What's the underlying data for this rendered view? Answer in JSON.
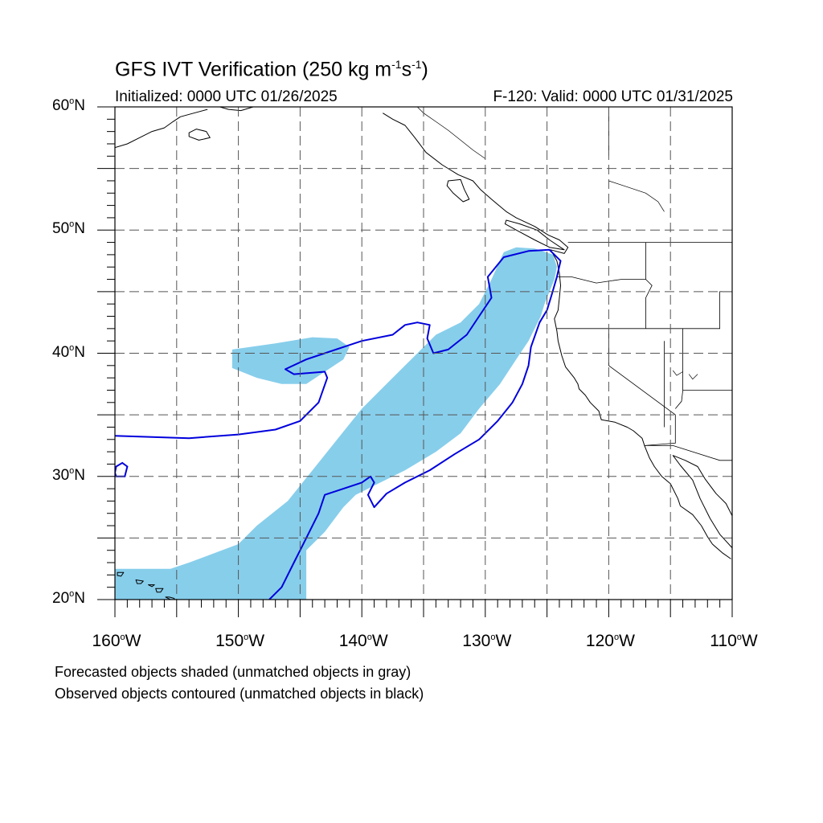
{
  "title": {
    "main": "GFS IVT Verification (250 kg m",
    "exp1": "-1",
    "mid": "s",
    "exp2": "-1",
    "end": ")"
  },
  "subtitle": {
    "initialized": "Initialized: 0000 UTC 01/26/2025",
    "valid": "F-120: Valid: 0000 UTC 01/31/2025"
  },
  "legend": {
    "forecast": "Forecasted objects shaded (unmatched objects in gray)",
    "observed": "Observed objects contoured (unmatched objects in black)"
  },
  "axes": {
    "lat_ticks": [
      {
        "value": 60,
        "label": "60",
        "suffix": "N"
      },
      {
        "value": 50,
        "label": "50",
        "suffix": "N"
      },
      {
        "value": 40,
        "label": "40",
        "suffix": "N"
      },
      {
        "value": 30,
        "label": "30",
        "suffix": "N"
      },
      {
        "value": 20,
        "label": "20",
        "suffix": "N"
      }
    ],
    "lon_ticks": [
      {
        "value": -160,
        "label": "160",
        "suffix": "W"
      },
      {
        "value": -150,
        "label": "150",
        "suffix": "W"
      },
      {
        "value": -140,
        "label": "140",
        "suffix": "W"
      },
      {
        "value": -130,
        "label": "130",
        "suffix": "W"
      },
      {
        "value": -120,
        "label": "120",
        "suffix": "W"
      },
      {
        "value": -110,
        "label": "110",
        "suffix": "W"
      }
    ],
    "lon_range": [
      -160,
      -110
    ],
    "lat_range": [
      20,
      60
    ],
    "degree_symbol": "o"
  },
  "colors": {
    "forecast_fill": "#87ceeb",
    "observed_contour": "#0000dd",
    "coast": "#000000",
    "grid": "#555555"
  },
  "map_data": {
    "forecast_object": [
      [
        -155.5,
        22.5
      ],
      [
        -154,
        23
      ],
      [
        -150,
        24.5
      ],
      [
        -148.5,
        26
      ],
      [
        -146,
        28
      ],
      [
        -144,
        30.5
      ],
      [
        -142,
        33
      ],
      [
        -140,
        35.5
      ],
      [
        -138,
        37.5
      ],
      [
        -136,
        39.5
      ],
      [
        -134,
        41.5
      ],
      [
        -132,
        42.5
      ],
      [
        -130.5,
        44
      ],
      [
        -129.5,
        46
      ],
      [
        -128.5,
        48.2
      ],
      [
        -127.5,
        48.6
      ],
      [
        -126,
        48.5
      ],
      [
        -124.5,
        48
      ],
      [
        -124.2,
        47
      ],
      [
        -124.4,
        46
      ],
      [
        -124.8,
        45
      ],
      [
        -125.2,
        44
      ],
      [
        -125.5,
        43
      ],
      [
        -126.5,
        41
      ],
      [
        -127.5,
        39.5
      ],
      [
        -128.8,
        37.5
      ],
      [
        -130.5,
        35.5
      ],
      [
        -132,
        33.5
      ],
      [
        -134,
        32
      ],
      [
        -136.5,
        30.5
      ],
      [
        -138.5,
        29.5
      ],
      [
        -140.5,
        28.5
      ],
      [
        -141.5,
        27.5
      ],
      [
        -143,
        25.5
      ],
      [
        -144.5,
        24
      ],
      [
        -144.5,
        20
      ],
      [
        -160,
        20
      ],
      [
        -160,
        22.5
      ]
    ],
    "forecast_object_secondary": [
      [
        -150.5,
        40.3
      ],
      [
        -147,
        40.8
      ],
      [
        -144,
        41.3
      ],
      [
        -142,
        41.2
      ],
      [
        -141,
        40.5
      ],
      [
        -141.5,
        39.5
      ],
      [
        -143,
        38.5
      ],
      [
        -144.5,
        37.5
      ],
      [
        -146.5,
        37.5
      ],
      [
        -148.5,
        38
      ],
      [
        -150.5,
        38.8
      ]
    ],
    "observed_contours": [
      [
        [
          -160,
          33.3
        ],
        [
          -157,
          33.2
        ],
        [
          -154,
          33.1
        ],
        [
          -150,
          33.4
        ],
        [
          -147,
          33.8
        ],
        [
          -145,
          34.5
        ],
        [
          -143.5,
          36
        ],
        [
          -142.8,
          38
        ],
        [
          -143,
          38.5
        ],
        [
          -145.5,
          38.3
        ],
        [
          -146.2,
          38.7
        ],
        [
          -144.5,
          39.5
        ],
        [
          -143,
          40
        ],
        [
          -141.5,
          40.5
        ],
        [
          -140,
          41
        ],
        [
          -137.5,
          41.5
        ],
        [
          -136.5,
          42.3
        ],
        [
          -135.5,
          42.5
        ],
        [
          -134.5,
          42.3
        ],
        [
          -134.7,
          41.2
        ],
        [
          -134.2,
          40
        ],
        [
          -133,
          40.3
        ],
        [
          -131.5,
          41.5
        ],
        [
          -130.5,
          43
        ],
        [
          -129.5,
          44.5
        ],
        [
          -129.8,
          46.2
        ],
        [
          -128.5,
          47.8
        ],
        [
          -126.5,
          48.3
        ],
        [
          -124.8,
          48.4
        ],
        [
          -123.9,
          47.5
        ],
        [
          -124.2,
          46.2
        ],
        [
          -124.6,
          44.8
        ],
        [
          -125,
          43.5
        ],
        [
          -125.6,
          42.5
        ],
        [
          -126.3,
          40.5
        ],
        [
          -126.5,
          39
        ],
        [
          -127,
          37.5
        ],
        [
          -127.8,
          36
        ],
        [
          -129,
          34.5
        ],
        [
          -130.5,
          33
        ],
        [
          -132.5,
          31.8
        ],
        [
          -134.5,
          30.5
        ],
        [
          -136.5,
          29.5
        ],
        [
          -138,
          28.6
        ],
        [
          -139,
          27.5
        ],
        [
          -139.5,
          28.5
        ],
        [
          -139,
          29.5
        ],
        [
          -139.3,
          30
        ],
        [
          -140,
          29.5
        ],
        [
          -141.5,
          29
        ],
        [
          -143,
          28.5
        ],
        [
          -143.5,
          27
        ],
        [
          -144.5,
          25
        ],
        [
          -145.5,
          23
        ],
        [
          -146.5,
          21
        ],
        [
          -147.5,
          20
        ]
      ]
    ],
    "observed_small_loop": [
      [
        -159.9,
        30
      ],
      [
        -159.2,
        30
      ],
      [
        -159,
        30.8
      ],
      [
        -159.4,
        31.1
      ],
      [
        -159.9,
        30.8
      ],
      [
        -160,
        30.3
      ]
    ],
    "coastline_main": [
      [
        -138.3,
        59.5
      ],
      [
        -137.5,
        59
      ],
      [
        -136.5,
        58.5
      ],
      [
        -135.7,
        57.5
      ],
      [
        -134.8,
        56.3
      ],
      [
        -133.5,
        55.3
      ],
      [
        -132.2,
        54.5
      ],
      [
        -131,
        54
      ],
      [
        -130.4,
        53.3
      ],
      [
        -129.5,
        52.5
      ],
      [
        -128.3,
        51.5
      ],
      [
        -127.5,
        51
      ],
      [
        -126,
        50.3
      ],
      [
        -124.9,
        49.6
      ],
      [
        -124,
        49.2
      ],
      [
        -123.3,
        48.6
      ],
      [
        -123.6,
        48.1
      ],
      [
        -124.7,
        48.4
      ],
      [
        -124.2,
        47.5
      ],
      [
        -124,
        46.5
      ],
      [
        -123.9,
        45.5
      ],
      [
        -124,
        44.5
      ],
      [
        -124.1,
        43.5
      ],
      [
        -124.4,
        42.8
      ],
      [
        -124.2,
        41.8
      ],
      [
        -124.1,
        41
      ],
      [
        -123.8,
        39.8
      ],
      [
        -123.5,
        38.9
      ],
      [
        -122.8,
        38
      ],
      [
        -122.5,
        37.5
      ],
      [
        -122.4,
        37.1
      ],
      [
        -121.9,
        36.6
      ],
      [
        -121.5,
        36
      ],
      [
        -120.8,
        35.3
      ],
      [
        -120.6,
        34.6
      ],
      [
        -119.5,
        34.4
      ],
      [
        -118.5,
        34
      ],
      [
        -118,
        33.7
      ],
      [
        -117.3,
        33.1
      ],
      [
        -117.1,
        32.5
      ],
      [
        -116.7,
        31.5
      ],
      [
        -116.3,
        30.8
      ],
      [
        -115.7,
        30
      ],
      [
        -115,
        29.4
      ],
      [
        -114.4,
        28.2
      ],
      [
        -114.2,
        27.6
      ],
      [
        -113.2,
        26.9
      ],
      [
        -112.5,
        26
      ],
      [
        -112,
        25.1
      ],
      [
        -111.6,
        24.5
      ],
      [
        -110.8,
        23.8
      ],
      [
        -110.1,
        23.3
      ]
    ],
    "coastline_gulf": [
      [
        -110,
        24.2
      ],
      [
        -111,
        25.3
      ],
      [
        -111.8,
        26.6
      ],
      [
        -112.6,
        28.2
      ],
      [
        -113.2,
        29.7
      ],
      [
        -114.2,
        30.9
      ],
      [
        -114.8,
        31.7
      ],
      [
        -113.8,
        31.3
      ],
      [
        -112.8,
        30.8
      ],
      [
        -112.2,
        29.8
      ],
      [
        -111.3,
        28.6
      ],
      [
        -110.5,
        27.8
      ],
      [
        -110,
        26.8
      ]
    ],
    "coastline_alaska_west": [
      [
        -160,
        56.7
      ],
      [
        -159,
        57
      ],
      [
        -158,
        57.5
      ],
      [
        -157,
        58
      ],
      [
        -156,
        58.3
      ],
      [
        -155.3,
        58.8
      ],
      [
        -154.7,
        59.2
      ],
      [
        -153.6,
        59.5
      ],
      [
        -152.5,
        59.8
      ]
    ],
    "coastline_alaska_south": [
      [
        -151.5,
        60
      ],
      [
        -150.8,
        59.8
      ],
      [
        -149.8,
        59.7
      ],
      [
        -148.8,
        60
      ],
      [
        -147.8,
        60
      ],
      [
        -146.8,
        60.1
      ]
    ],
    "islands": [
      [
        [
          -154,
          57.6
        ],
        [
          -153.2,
          57.3
        ],
        [
          -152.3,
          57.5
        ],
        [
          -152.6,
          58
        ],
        [
          -153.4,
          58.2
        ],
        [
          -154,
          57.9
        ]
      ],
      [
        [
          -133,
          54
        ],
        [
          -132,
          54.1
        ],
        [
          -131.7,
          53.3
        ],
        [
          -131.3,
          52.5
        ],
        [
          -131.8,
          52.3
        ],
        [
          -132.6,
          53
        ],
        [
          -133.1,
          53.6
        ]
      ],
      [
        [
          -128.3,
          50.8
        ],
        [
          -127.2,
          50.5
        ],
        [
          -125.8,
          50
        ],
        [
          -124.8,
          49.2
        ],
        [
          -123.6,
          48.4
        ],
        [
          -124.8,
          48.6
        ],
        [
          -126,
          49.2
        ],
        [
          -127.3,
          49.9
        ],
        [
          -128.4,
          50.5
        ]
      ],
      [
        [
          -155.9,
          20.2
        ],
        [
          -155.1,
          19.8
        ],
        [
          -155.2,
          20.1
        ],
        [
          -155.6,
          20.2
        ]
      ],
      [
        [
          -156.7,
          20.9
        ],
        [
          -156.1,
          20.9
        ],
        [
          -156.3,
          20.6
        ],
        [
          -156.6,
          20.6
        ]
      ],
      [
        [
          -157.3,
          21.2
        ],
        [
          -156.8,
          21.2
        ],
        [
          -157,
          21.05
        ]
      ],
      [
        [
          -158.3,
          21.6
        ],
        [
          -157.7,
          21.5
        ],
        [
          -157.9,
          21.3
        ],
        [
          -158.2,
          21.3
        ]
      ],
      [
        [
          -159.8,
          22.2
        ],
        [
          -159.3,
          22.2
        ],
        [
          -159.5,
          21.9
        ],
        [
          -159.8,
          21.95
        ]
      ]
    ],
    "political_borders": [
      [
        [
          -123.3,
          49
        ],
        [
          -117,
          49
        ],
        [
          -110,
          49
        ]
      ],
      [
        [
          -117,
          49
        ],
        [
          -117,
          46
        ],
        [
          -116.5,
          45.5
        ],
        [
          -117,
          44.5
        ],
        [
          -117,
          42
        ]
      ],
      [
        [
          -124.2,
          46.2
        ],
        [
          -123,
          46.2
        ],
        [
          -121,
          45.7
        ],
        [
          -119,
          46
        ],
        [
          -117,
          46
        ]
      ],
      [
        [
          -124.2,
          42
        ],
        [
          -120,
          42
        ],
        [
          -117,
          42
        ],
        [
          -114,
          42
        ],
        [
          -111,
          42
        ],
        [
          -111,
          45
        ],
        [
          -110,
          45
        ]
      ],
      [
        [
          -120,
          42
        ],
        [
          -120,
          39
        ],
        [
          -114.6,
          35
        ],
        [
          -114.6,
          34.5
        ],
        [
          -114.6,
          32.7
        ],
        [
          -117.1,
          32.5
        ]
      ],
      [
        [
          -114,
          42
        ],
        [
          -114,
          37
        ],
        [
          -114.1,
          36.1
        ],
        [
          -114.6,
          35.5
        ]
      ],
      [
        [
          -114,
          37
        ],
        [
          -110,
          37
        ]
      ],
      [
        [
          -117.1,
          32.5
        ],
        [
          -114.8,
          32.5
        ],
        [
          -111,
          31.3
        ],
        [
          -110,
          31.3
        ]
      ],
      [
        [
          -120,
          56
        ],
        [
          -120,
          60
        ]
      ],
      [
        [
          -115.5,
          41
        ],
        [
          -115.5,
          34
        ]
      ]
    ],
    "interior_lines": [
      [
        [
          -130,
          55.8
        ],
        [
          -131,
          56.5
        ],
        [
          -132,
          57.3
        ],
        [
          -133,
          58.1
        ],
        [
          -134,
          58.8
        ],
        [
          -135,
          59.5
        ],
        [
          -135.5,
          60
        ]
      ],
      [
        [
          -120,
          54
        ],
        [
          -118.5,
          53.5
        ],
        [
          -117,
          53
        ],
        [
          -116,
          52.3
        ],
        [
          -115.5,
          51.5
        ]
      ],
      [
        [
          -114.8,
          38.6
        ],
        [
          -114.5,
          38.2
        ],
        [
          -114,
          38.5
        ]
      ],
      [
        [
          -113.5,
          38.3
        ],
        [
          -113.2,
          37.9
        ],
        [
          -112.8,
          38.3
        ]
      ]
    ]
  }
}
